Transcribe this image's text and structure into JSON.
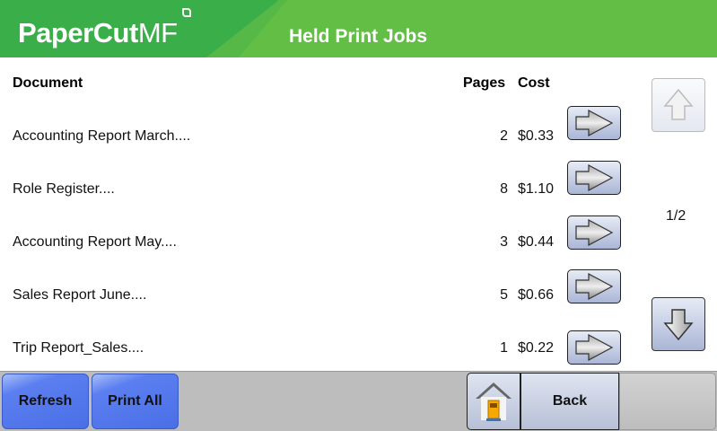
{
  "header": {
    "logo": "PaperCut",
    "logo_suffix": "MF",
    "title": "Held Print Jobs",
    "brand_color": "#3aae49"
  },
  "table": {
    "columns": {
      "document": "Document",
      "pages": "Pages",
      "cost": "Cost"
    },
    "rows": [
      {
        "document": "Accounting Report March....",
        "pages": "2",
        "cost": "$0.33"
      },
      {
        "document": "Role Register....",
        "pages": "8",
        "cost": "$1.10"
      },
      {
        "document": "Accounting Report May....",
        "pages": "3",
        "cost": "$0.44"
      },
      {
        "document": "Sales Report June....",
        "pages": "5",
        "cost": "$0.66"
      },
      {
        "document": "Trip Report_Sales....",
        "pages": "1",
        "cost": "$0.22"
      }
    ]
  },
  "pagination": {
    "indicator": "1/2",
    "up_icon": "arrow-up-icon",
    "down_icon": "arrow-down-icon"
  },
  "footer": {
    "refresh": "Refresh",
    "print_all": "Print All",
    "back": "Back",
    "home_icon": "home-icon"
  }
}
